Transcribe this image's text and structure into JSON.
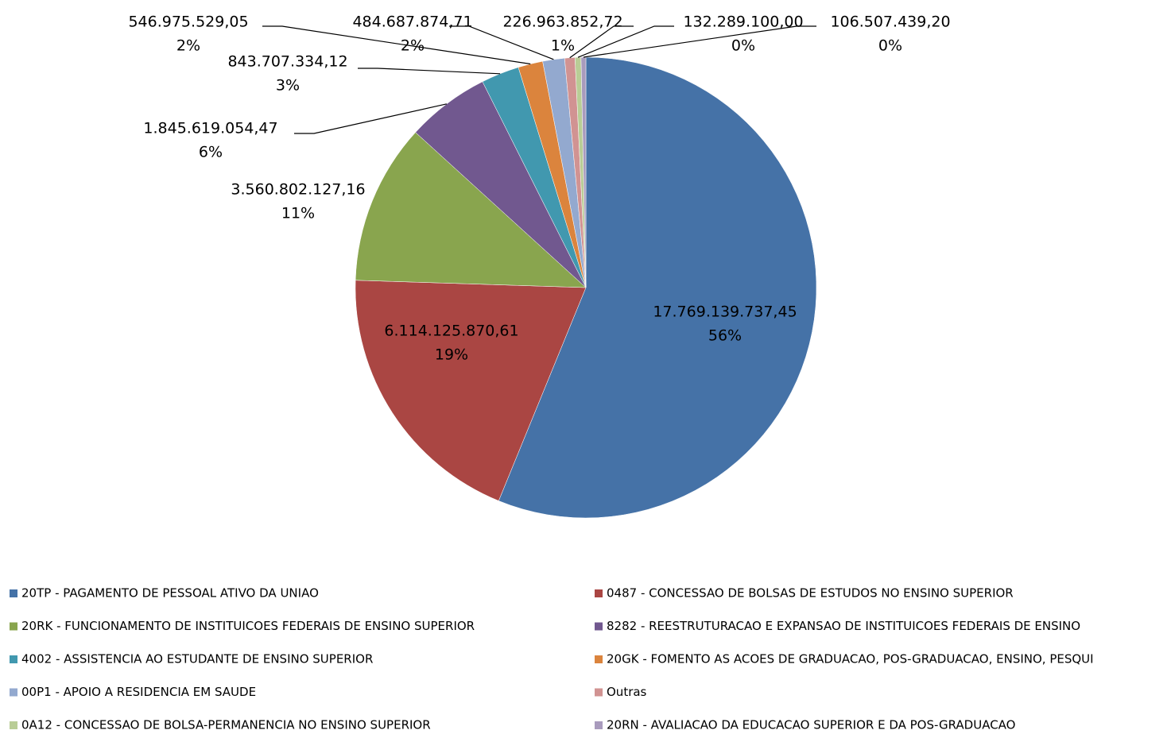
{
  "chart_data": {
    "type": "pie",
    "categories": [
      "20TP - PAGAMENTO DE PESSOAL ATIVO DA UNIAO",
      "0487 - CONCESSAO DE BOLSAS DE ESTUDOS NO ENSINO SUPERIOR",
      "20RK - FUNCIONAMENTO DE INSTITUICOES FEDERAIS DE ENSINO SUPERIOR",
      "8282 - REESTRUTURACAO E EXPANSAO DE INSTITUICOES FEDERAIS DE ENSINO",
      "4002 - ASSISTENCIA AO ESTUDANTE DE ENSINO SUPERIOR",
      "20GK - FOMENTO AS ACOES DE GRADUACAO, POS-GRADUACAO, ENSINO, PESQUI",
      "00P1 - APOIO A RESIDENCIA EM SAUDE",
      "Outras",
      "0A12 - CONCESSAO DE BOLSA-PERMANENCIA NO ENSINO SUPERIOR",
      "20RN - AVALIACAO DA EDUCACAO SUPERIOR E DA POS-GRADUACAO"
    ],
    "values": [
      17769139737.45,
      6114125870.61,
      3560802127.16,
      1845619054.47,
      843707334.12,
      546975529.05,
      484687874.71,
      226963852.72,
      132289100.0,
      106507439.2
    ],
    "value_labels": [
      "17.769.139.737,45",
      "6.114.125.870,61",
      "3.560.802.127,16",
      "1.845.619.054,47",
      "843.707.334,12",
      "546.975.529,05",
      "484.687.874,71",
      "226.963.852,72",
      "132.289.100,00",
      "106.507.439,20"
    ],
    "percent_labels": [
      "56%",
      "19%",
      "11%",
      "6%",
      "3%",
      "2%",
      "2%",
      "1%",
      "0%",
      "0%"
    ],
    "colors": [
      "#4572a7",
      "#aa4643",
      "#89a54e",
      "#71588f",
      "#4198af",
      "#db843d",
      "#93a9cf",
      "#d19392",
      "#b9cd96",
      "#a99bbd"
    ],
    "legend": "bottom"
  }
}
